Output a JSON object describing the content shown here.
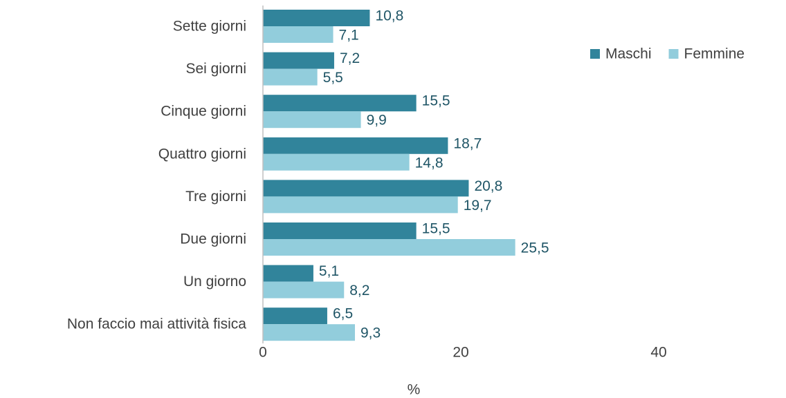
{
  "chart_data": {
    "type": "bar",
    "orientation": "horizontal",
    "categories": [
      "Sette giorni",
      "Sei giorni",
      "Cinque giorni",
      "Quattro giorni",
      "Tre giorni",
      "Due giorni",
      "Un giorno",
      "Non faccio mai attività fisica"
    ],
    "series": [
      {
        "name": "Maschi",
        "color": "#31849b",
        "values": [
          10.8,
          7.2,
          15.5,
          18.7,
          20.8,
          15.5,
          5.1,
          6.5
        ],
        "value_labels": [
          "10,8",
          "7,2",
          "15,5",
          "18,7",
          "20,8",
          "15,5",
          "5,1",
          "6,5"
        ]
      },
      {
        "name": "Femmine",
        "color": "#92cddc",
        "values": [
          7.1,
          5.5,
          9.9,
          14.8,
          19.7,
          25.5,
          8.2,
          9.3
        ],
        "value_labels": [
          "7,1",
          "5,5",
          "9,9",
          "14,8",
          "19,7",
          "25,5",
          "8,2",
          "9,3"
        ]
      }
    ],
    "x_label": "%",
    "xlim": [
      0,
      50
    ],
    "xticks": [
      0,
      20,
      40
    ],
    "legend": "top-right",
    "grid": false
  }
}
